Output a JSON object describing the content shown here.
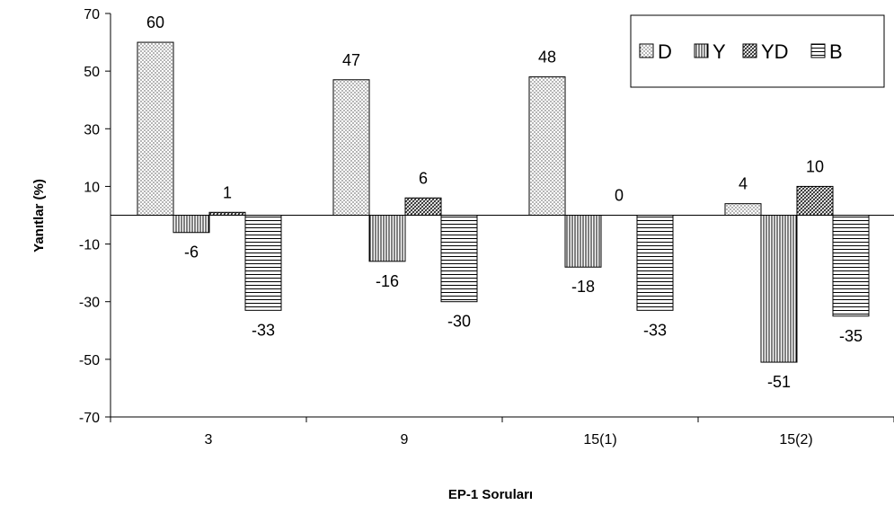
{
  "chart_data": {
    "type": "bar",
    "title": "",
    "xlabel": "EP-1 Soruları",
    "ylabel": "Yanıtlar (%)",
    "categories": [
      "3",
      "9",
      "15(1)",
      "15(2)"
    ],
    "ylim": [
      -70,
      70
    ],
    "yticks": [
      70,
      50,
      30,
      10,
      -10,
      -30,
      -50,
      -70
    ],
    "grid": false,
    "legend": "top-right",
    "series": [
      {
        "name": "D",
        "pattern": "dots",
        "values": [
          60,
          47,
          48,
          4
        ]
      },
      {
        "name": "Y",
        "pattern": "vertical",
        "values": [
          -6,
          -16,
          -18,
          -51
        ]
      },
      {
        "name": "YD",
        "pattern": "crosshatch",
        "values": [
          1,
          6,
          0,
          10
        ]
      },
      {
        "name": "B",
        "pattern": "horizontal",
        "values": [
          -33,
          -30,
          -33,
          -35
        ]
      }
    ],
    "data_labels": [
      [
        "60",
        "47",
        "48",
        "4"
      ],
      [
        "-6",
        "-16",
        "-18",
        "-51"
      ],
      [
        "1",
        "6",
        "0",
        "10"
      ],
      [
        "-33",
        "-30",
        "-33",
        "-35"
      ]
    ]
  }
}
